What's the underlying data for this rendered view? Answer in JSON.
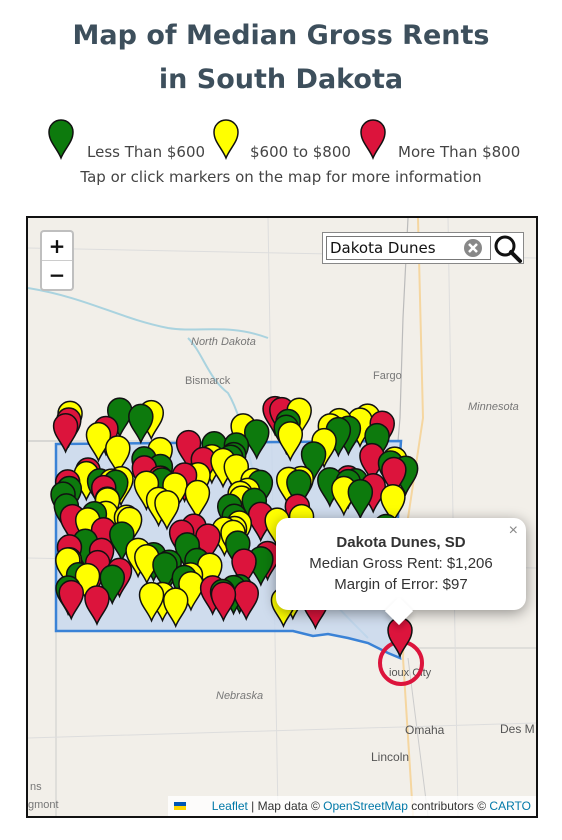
{
  "header": {
    "title": "Map of Median Gross Rents in South Dakota"
  },
  "legend": [
    {
      "label": "Less Than $600",
      "color": "#0d7a0d"
    },
    {
      "label": "$600 to $800",
      "color": "#ffff00"
    },
    {
      "label": "More Than $800",
      "color": "#dc143c"
    }
  ],
  "instructions": "Tap or click markers on the map for more information",
  "map": {
    "zoom_in": "+",
    "zoom_out": "−",
    "search_text": "Dakota Dunes",
    "labels": {
      "north_dakota": "North Dakota",
      "bismarck": "Bismarck",
      "fargo": "Fargo",
      "minnesota": "Minnesota",
      "nebraska": "Nebraska",
      "omaha": "Omaha",
      "lincoln": "Lincoln",
      "sioux_city": "ioux City",
      "des_moines": "Des M",
      "left_1": "ns",
      "left_2": "gmont"
    },
    "popup": {
      "close": "×",
      "title": "Dakota Dunes, SD",
      "rent": "Median Gross Rent: $1,206",
      "error": "Margin of Error: $97"
    },
    "attribution": {
      "leaflet": "Leaflet",
      "map_data": " | Map data © ",
      "osm": "OpenStreetMap",
      "contributors": " contributors © ",
      "carto": "CARTO"
    }
  }
}
